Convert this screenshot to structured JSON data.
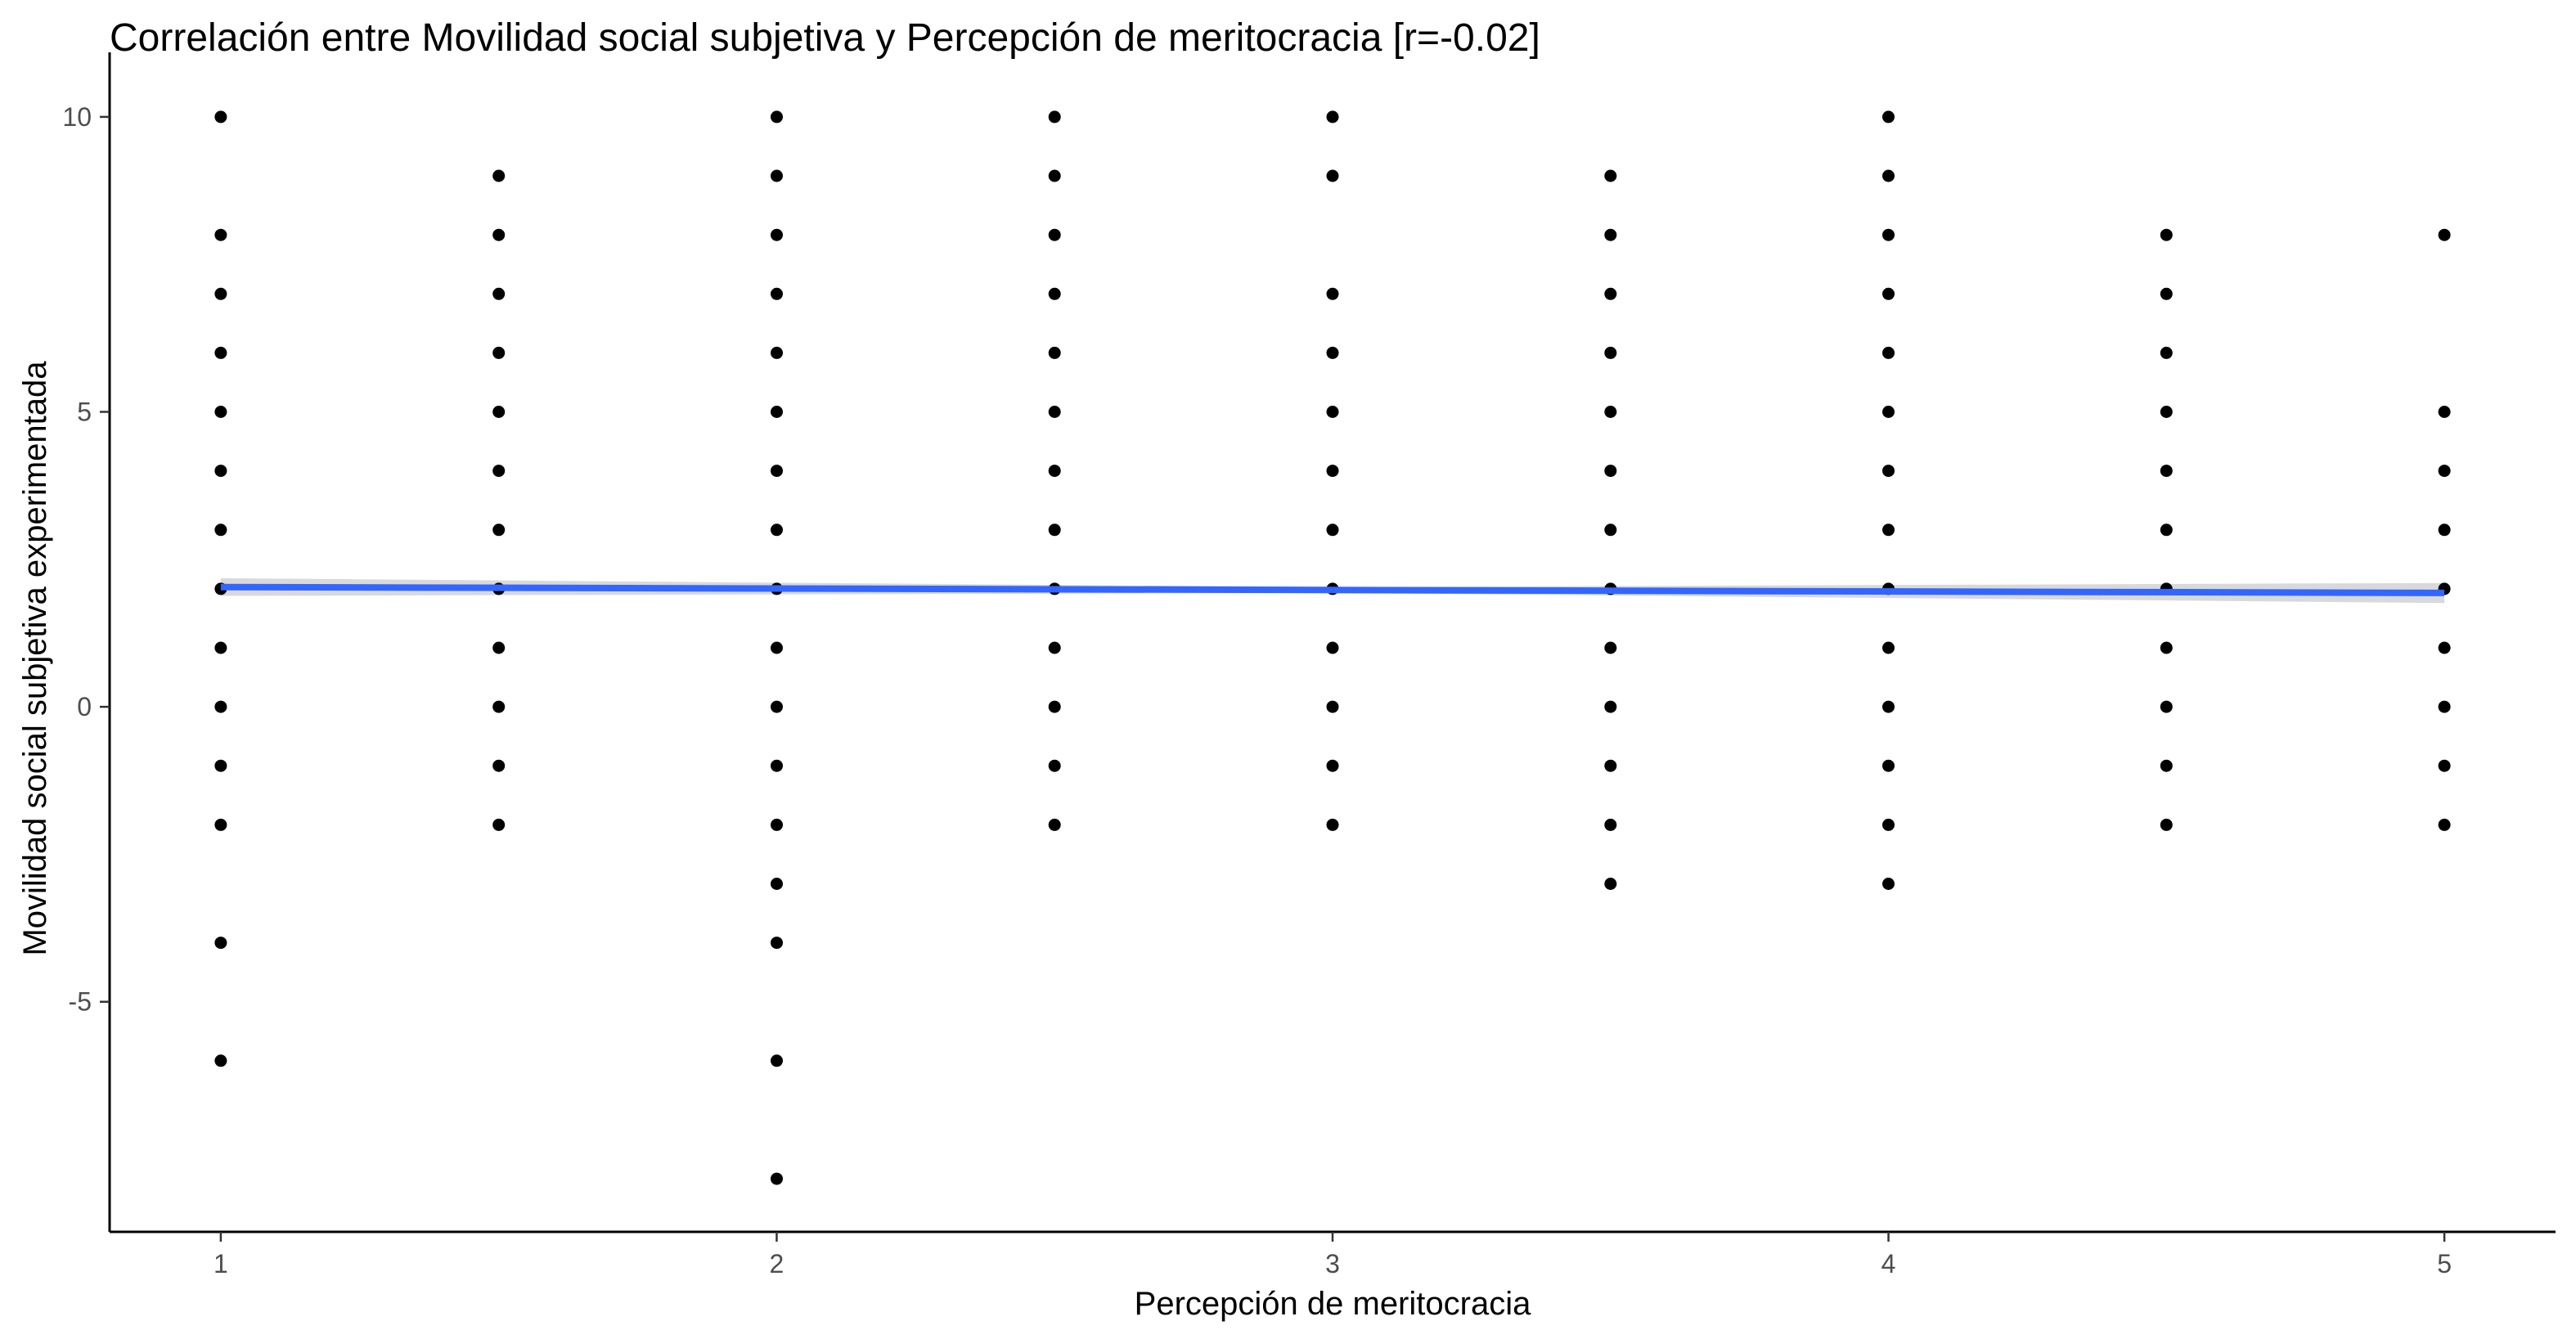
{
  "chart_data": {
    "type": "scatter",
    "title": "Correlación entre Movilidad social subjetiva y Percepción de meritocracia [r=-0.02]",
    "xlabel": "Percepción de meritocracia",
    "ylabel": "Movilidad social subjetiva experimentada",
    "xlim": [
      0.8,
      5.2
    ],
    "ylim": [
      -8.9,
      10.9
    ],
    "x_ticks": [
      1,
      2,
      3,
      4,
      5
    ],
    "x_tick_labels": [
      "1",
      "2",
      "3",
      "4",
      "5"
    ],
    "y_ticks": [
      -5,
      0,
      5,
      10
    ],
    "y_tick_labels": [
      "-5",
      "0",
      "5",
      "10"
    ],
    "grid": false,
    "legend": "none",
    "points": [
      {
        "x": 1,
        "ys": [
          10,
          8,
          7,
          6,
          5,
          4,
          3,
          2,
          1,
          0,
          -1,
          -2,
          -4,
          -6
        ]
      },
      {
        "x": 1.5,
        "ys": [
          9,
          8,
          7,
          6,
          5,
          4,
          3,
          2,
          1,
          0,
          -1,
          -2
        ]
      },
      {
        "x": 2,
        "ys": [
          10,
          9,
          8,
          7,
          6,
          5,
          4,
          3,
          2,
          1,
          0,
          -1,
          -2,
          -3,
          -4,
          -6,
          -8
        ]
      },
      {
        "x": 2.5,
        "ys": [
          10,
          9,
          8,
          7,
          6,
          5,
          4,
          3,
          2,
          1,
          0,
          -1,
          -2
        ]
      },
      {
        "x": 3,
        "ys": [
          10,
          9,
          7,
          6,
          5,
          4,
          3,
          2,
          1,
          0,
          -1,
          -2
        ]
      },
      {
        "x": 3.5,
        "ys": [
          9,
          8,
          7,
          6,
          5,
          4,
          3,
          2,
          1,
          0,
          -1,
          -2,
          -3
        ]
      },
      {
        "x": 4,
        "ys": [
          10,
          9,
          8,
          7,
          6,
          5,
          4,
          3,
          2,
          1,
          0,
          -1,
          -2,
          -3
        ]
      },
      {
        "x": 4.5,
        "ys": [
          8,
          7,
          6,
          5,
          4,
          3,
          2,
          1,
          0,
          -1,
          -2
        ]
      },
      {
        "x": 5,
        "ys": [
          8,
          5,
          4,
          3,
          2,
          1,
          0,
          -1,
          -2
        ]
      }
    ],
    "trend_line": {
      "x": [
        1,
        5
      ],
      "y": [
        2.03,
        1.93
      ],
      "color": "#3366ff"
    },
    "confidence_band": {
      "x": [
        1,
        3,
        5
      ],
      "upper": [
        2.18,
        2.03,
        2.1
      ],
      "lower": [
        1.88,
        1.93,
        1.76
      ],
      "color": "#cccccc"
    },
    "point_color": "#000000"
  }
}
